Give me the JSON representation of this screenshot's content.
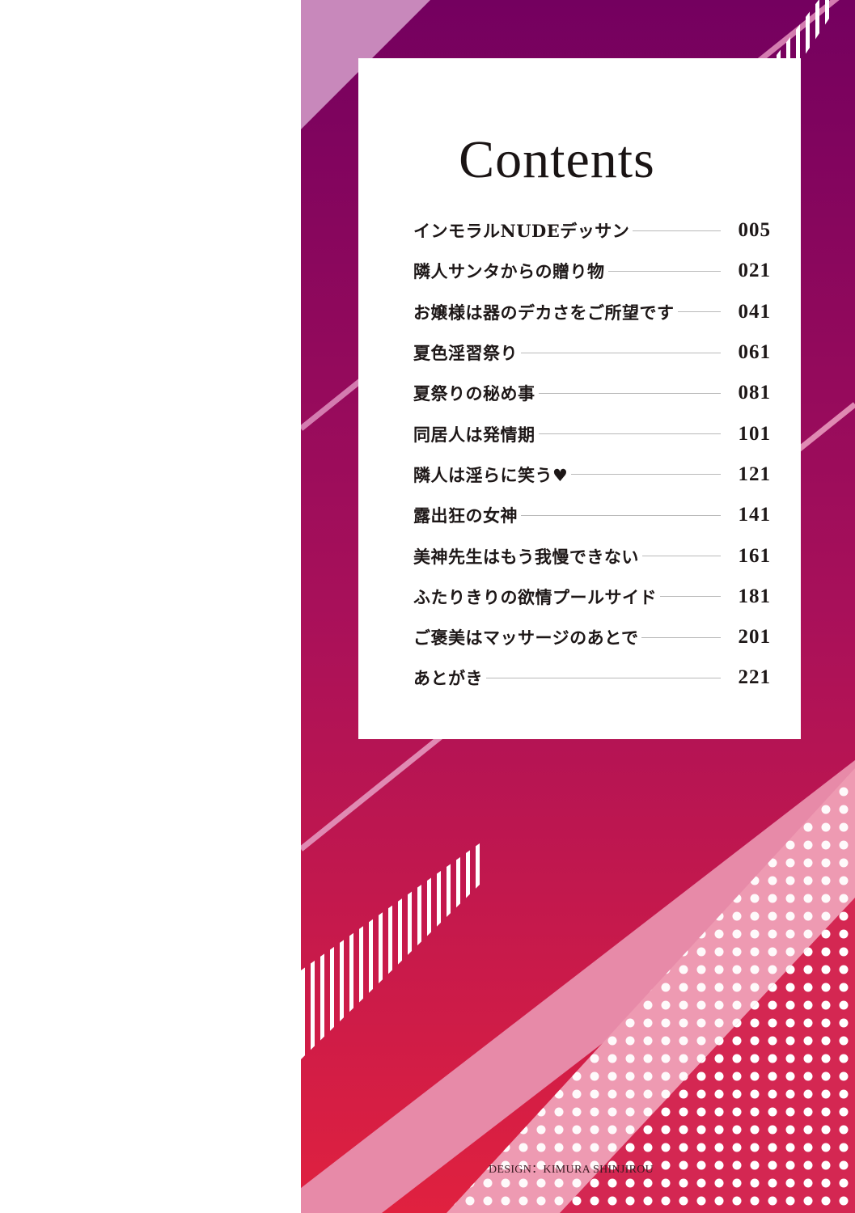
{
  "page": {
    "title": "Contents",
    "entries": [
      {
        "title": "インモラルNUDEデッサン",
        "page": "005"
      },
      {
        "title": "隣人サンタからの贈り物",
        "page": "021"
      },
      {
        "title": "お嬢様は器のデカさをご所望です",
        "page": "041"
      },
      {
        "title": "夏色淫習祭り",
        "page": "061"
      },
      {
        "title": "夏祭りの秘め事",
        "page": "081"
      },
      {
        "title": "同居人は発情期",
        "page": "101"
      },
      {
        "title": "隣人は淫らに笑う♥",
        "page": "121"
      },
      {
        "title": "露出狂の女神",
        "page": "141"
      },
      {
        "title": "美神先生はもう我慢できない",
        "page": "161"
      },
      {
        "title": "ふたりきりの欲情プールサイド",
        "page": "181"
      },
      {
        "title": "ご褒美はマッサージのあとで",
        "page": "201"
      },
      {
        "title": "あとがき",
        "page": "221"
      }
    ],
    "credit": "DESIGN：KIMURA SHINJIROU"
  },
  "colors": {
    "top": "#74005f",
    "bottom": "#e0213f",
    "light_band": "#e78aa8",
    "dot_red": "#d42752",
    "white": "#ffffff"
  }
}
